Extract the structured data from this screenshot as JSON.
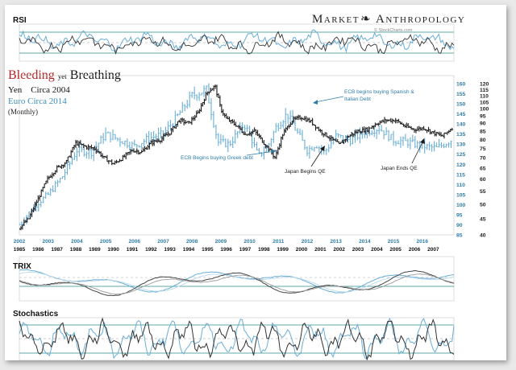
{
  "brand": {
    "title_left": "Market",
    "title_right": "Anthropology",
    "credit": "© StockCharts.com"
  },
  "headline": {
    "word1": "Bleeding",
    "word2": "yet",
    "word3": "Breathing",
    "series1_label": "Yen    Circa 2004",
    "series2_label": "Euro Circa 2014",
    "period": "(Monthly)"
  },
  "colors": {
    "yen": "#1a1a1a",
    "euro": "#6aaed6",
    "bleeding": "#b52020",
    "teal_text": "#2f7da8",
    "zero_line": "#2b8a8a"
  },
  "panels": {
    "rsi_label": "RSI",
    "trix_label": "TRIX",
    "stoch_label": "Stochastics"
  },
  "annotations": [
    {
      "text": "ECB Begins buying Greek debt",
      "color": "#2f7da8"
    },
    {
      "text": "ECB begins buying Spanish &",
      "color": "#2f7da8"
    },
    {
      "text": "Italian Debt",
      "color": "#2f7da8"
    },
    {
      "text": "Japan Begins QE",
      "color": "#1a1a1a"
    },
    {
      "text": "Japan Ends QE",
      "color": "#1a1a1a"
    }
  ],
  "chart_data": {
    "type": "line",
    "title": "Bleeding yet Breathing",
    "x_top_years": [
      "2002",
      "2003",
      "2004",
      "2005",
      "2006",
      "2007",
      "2008",
      "2009",
      "2010",
      "2011",
      "2012",
      "2013",
      "2014",
      "2015",
      "2016"
    ],
    "x_bottom_years": [
      "1985",
      "1986",
      "1987",
      "1988",
      "1989",
      "1990",
      "1991",
      "1992",
      "1993",
      "1994",
      "1995",
      "1996",
      "1997",
      "1998",
      "1999",
      "2000",
      "2001",
      "2002",
      "2003",
      "2004",
      "2005",
      "2006",
      "2007"
    ],
    "right_axis_euro_ticks": [
      "160",
      "155",
      "150",
      "145",
      "140",
      "135",
      "130",
      "125",
      "120",
      "115",
      "110",
      "105",
      "100",
      "95",
      "90",
      "85"
    ],
    "right_axis_yen_ticks": [
      "120",
      "115",
      "110",
      "105",
      "100",
      "95",
      "90",
      "85",
      "80",
      "75",
      "70",
      "65",
      "60",
      "55",
      "50",
      "45",
      "40"
    ],
    "series": [
      {
        "name": "Yen",
        "axis": "1985-2007, yen scale",
        "points": [
          [
            1985.0,
            42
          ],
          [
            1985.5,
            45
          ],
          [
            1986.0,
            52
          ],
          [
            1986.5,
            60
          ],
          [
            1987.0,
            65
          ],
          [
            1987.5,
            68
          ],
          [
            1988.0,
            78
          ],
          [
            1988.5,
            76
          ],
          [
            1989.0,
            75
          ],
          [
            1989.5,
            70
          ],
          [
            1990.0,
            67
          ],
          [
            1990.5,
            70
          ],
          [
            1991.0,
            74
          ],
          [
            1991.5,
            73
          ],
          [
            1992.0,
            78
          ],
          [
            1992.5,
            80
          ],
          [
            1993.0,
            84
          ],
          [
            1993.5,
            92
          ],
          [
            1994.0,
            90
          ],
          [
            1994.5,
            97
          ],
          [
            1995.0,
            113
          ],
          [
            1995.4,
            118
          ],
          [
            1995.7,
            100
          ],
          [
            1996.0,
            93
          ],
          [
            1996.5,
            89
          ],
          [
            1997.0,
            83
          ],
          [
            1997.5,
            85
          ],
          [
            1998.0,
            78
          ],
          [
            1998.6,
            70
          ],
          [
            1999.0,
            83
          ],
          [
            1999.5,
            92
          ],
          [
            2000.0,
            94
          ],
          [
            2000.5,
            91
          ],
          [
            2001.0,
            85
          ],
          [
            2001.5,
            81
          ],
          [
            2002.0,
            77
          ],
          [
            2002.5,
            82
          ],
          [
            2003.0,
            85
          ],
          [
            2003.5,
            86
          ],
          [
            2004.0,
            90
          ],
          [
            2004.5,
            92
          ],
          [
            2005.0,
            92
          ],
          [
            2005.5,
            88
          ],
          [
            2006.0,
            86
          ],
          [
            2006.5,
            87
          ],
          [
            2007.0,
            84
          ],
          [
            2007.5,
            82
          ],
          [
            2008.0,
            87
          ]
        ]
      },
      {
        "name": "Euro",
        "axis": "2002-2016, euro scale",
        "points": [
          [
            2002.0,
            90
          ],
          [
            2002.5,
            99
          ],
          [
            2003.0,
            105
          ],
          [
            2003.5,
            114
          ],
          [
            2004.0,
            127
          ],
          [
            2004.5,
            126
          ],
          [
            2005.0,
            135
          ],
          [
            2005.5,
            132
          ],
          [
            2006.0,
            129
          ],
          [
            2006.5,
            133
          ],
          [
            2007.0,
            135
          ],
          [
            2007.5,
            144
          ],
          [
            2008.0,
            154
          ],
          [
            2008.5,
            157
          ],
          [
            2008.9,
            131
          ],
          [
            2009.3,
            130
          ],
          [
            2009.8,
            140
          ],
          [
            2010.0,
            135
          ],
          [
            2010.3,
            124
          ],
          [
            2010.6,
            128
          ],
          [
            2010.9,
            138
          ],
          [
            2011.3,
            145
          ],
          [
            2011.8,
            132
          ],
          [
            2012.0,
            127
          ],
          [
            2012.3,
            130
          ],
          [
            2012.6,
            126
          ],
          [
            2013.0,
            134
          ],
          [
            2013.5,
            132
          ],
          [
            2014.0,
            136
          ],
          [
            2014.5,
            138
          ],
          [
            2015.0,
            132
          ],
          [
            2015.5,
            131
          ],
          [
            2016.0,
            129
          ],
          [
            2016.5,
            128
          ],
          [
            2017.0,
            132
          ]
        ]
      }
    ],
    "indicators": {
      "rsi": {
        "levels": [
          70,
          30
        ],
        "range": [
          0,
          100
        ]
      },
      "trix": {
        "zero_line": true
      },
      "stochastics": {
        "levels": [
          80,
          20
        ],
        "range": [
          0,
          100
        ]
      }
    }
  }
}
